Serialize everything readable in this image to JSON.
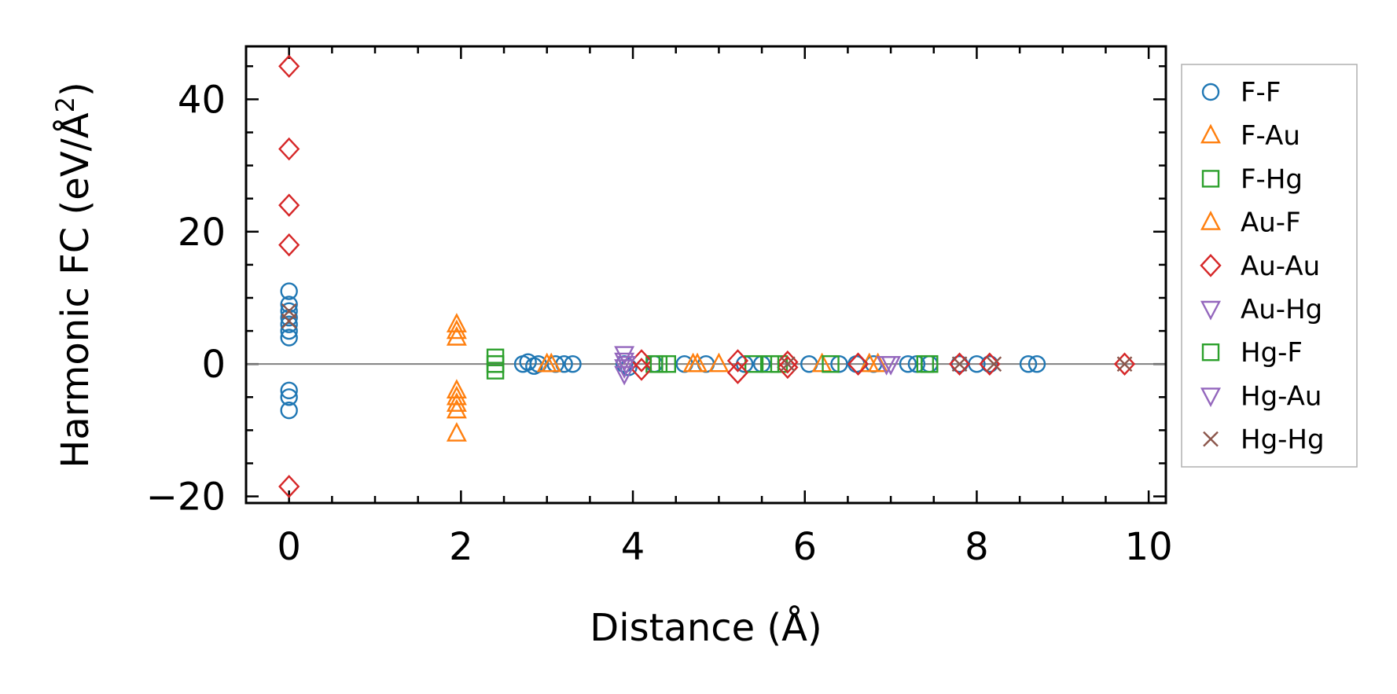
{
  "chart_data": {
    "type": "scatter",
    "title": "",
    "xlabel": "Distance (Å)",
    "ylabel": "Harmonic FC (eV/Å²)",
    "ylabel_prefix": "Harmonic FC (eV/Å",
    "ylabel_sup": "2",
    "ylabel_suffix": ")",
    "xlim": [
      -0.5,
      10.2
    ],
    "ylim": [
      -21,
      48
    ],
    "xticks": [
      0,
      2,
      4,
      6,
      8,
      10
    ],
    "yticks": [
      -20,
      0,
      20,
      40
    ],
    "xtick_labels": [
      "0",
      "2",
      "4",
      "6",
      "8",
      "10"
    ],
    "ytick_labels": [
      "−20",
      "0",
      "20",
      "40"
    ],
    "zero_line": true,
    "legend_position": "outside-right",
    "series": [
      {
        "name": "F-F",
        "marker": "circle",
        "color": "#1f77b4",
        "points": [
          [
            0,
            11
          ],
          [
            0,
            9
          ],
          [
            0,
            8
          ],
          [
            0,
            7
          ],
          [
            0,
            6
          ],
          [
            0,
            5
          ],
          [
            0,
            4
          ],
          [
            0,
            -4
          ],
          [
            0,
            -5
          ],
          [
            0,
            -7
          ],
          [
            2.72,
            0
          ],
          [
            2.78,
            0.3
          ],
          [
            2.85,
            -0.3
          ],
          [
            2.9,
            0
          ],
          [
            3.1,
            0
          ],
          [
            3.2,
            0
          ],
          [
            3.3,
            0
          ],
          [
            3.9,
            0
          ],
          [
            3.95,
            -0.5
          ],
          [
            4.25,
            0
          ],
          [
            4.6,
            0
          ],
          [
            4.85,
            0
          ],
          [
            5.3,
            0
          ],
          [
            5.5,
            0
          ],
          [
            6.05,
            0
          ],
          [
            6.4,
            0
          ],
          [
            6.6,
            0
          ],
          [
            6.8,
            0
          ],
          [
            7.2,
            0
          ],
          [
            7.3,
            0
          ],
          [
            7.45,
            0
          ],
          [
            7.8,
            0
          ],
          [
            8.0,
            0
          ],
          [
            8.15,
            0
          ],
          [
            8.6,
            0
          ],
          [
            8.7,
            0
          ]
        ]
      },
      {
        "name": "F-Au",
        "marker": "triangle-up",
        "color": "#ff7f0e",
        "points": [
          [
            1.95,
            6
          ],
          [
            1.95,
            5
          ],
          [
            1.95,
            4
          ],
          [
            1.95,
            -4
          ],
          [
            1.95,
            -5
          ],
          [
            1.95,
            -6
          ],
          [
            1.95,
            -7
          ],
          [
            1.95,
            -10.5
          ],
          [
            3.0,
            0
          ],
          [
            4.7,
            0
          ],
          [
            5.0,
            0
          ],
          [
            6.2,
            0
          ],
          [
            6.75,
            0
          ]
        ]
      },
      {
        "name": "F-Hg",
        "marker": "square",
        "color": "#2ca02c",
        "points": [
          [
            2.4,
            0
          ],
          [
            2.4,
            -1
          ],
          [
            2.4,
            1
          ],
          [
            4.25,
            0
          ],
          [
            4.4,
            0
          ],
          [
            5.4,
            0
          ],
          [
            5.7,
            0
          ],
          [
            6.3,
            0
          ],
          [
            7.45,
            0
          ]
        ]
      },
      {
        "name": "Au-F",
        "marker": "triangle-up",
        "color": "#ff7f0e",
        "points": [
          [
            3.05,
            0
          ],
          [
            4.75,
            0
          ],
          [
            6.85,
            0
          ]
        ]
      },
      {
        "name": "Au-Au",
        "marker": "diamond",
        "color": "#d62728",
        "points": [
          [
            0,
            45
          ],
          [
            0,
            32.5
          ],
          [
            0,
            24
          ],
          [
            0,
            18
          ],
          [
            0,
            -18.5
          ],
          [
            4.1,
            0.5
          ],
          [
            4.1,
            -0.8
          ],
          [
            5.22,
            0.5
          ],
          [
            5.22,
            -1.3
          ],
          [
            5.8,
            0.3
          ],
          [
            5.8,
            -0.5
          ],
          [
            6.62,
            0
          ],
          [
            7.8,
            0
          ],
          [
            8.15,
            0
          ],
          [
            9.72,
            0
          ]
        ]
      },
      {
        "name": "Au-Hg",
        "marker": "triangle-down",
        "color": "#9467bd",
        "points": [
          [
            3.9,
            1.5
          ],
          [
            3.9,
            0.5
          ],
          [
            3.9,
            -0.5
          ],
          [
            3.9,
            -1.5
          ],
          [
            6.95,
            0
          ]
        ]
      },
      {
        "name": "Hg-F",
        "marker": "square",
        "color": "#2ca02c",
        "points": [
          [
            2.4,
            0
          ],
          [
            4.3,
            0
          ],
          [
            5.6,
            0
          ],
          [
            7.4,
            0
          ]
        ]
      },
      {
        "name": "Hg-Au",
        "marker": "triangle-down",
        "color": "#9467bd",
        "points": [
          [
            3.92,
            0
          ],
          [
            7.0,
            0
          ]
        ]
      },
      {
        "name": "Hg-Hg",
        "marker": "x",
        "color": "#8c564b",
        "points": [
          [
            0,
            8
          ],
          [
            0,
            6.5
          ],
          [
            5.8,
            0
          ],
          [
            7.8,
            0
          ],
          [
            8.2,
            0
          ],
          [
            9.72,
            0
          ]
        ]
      }
    ]
  }
}
